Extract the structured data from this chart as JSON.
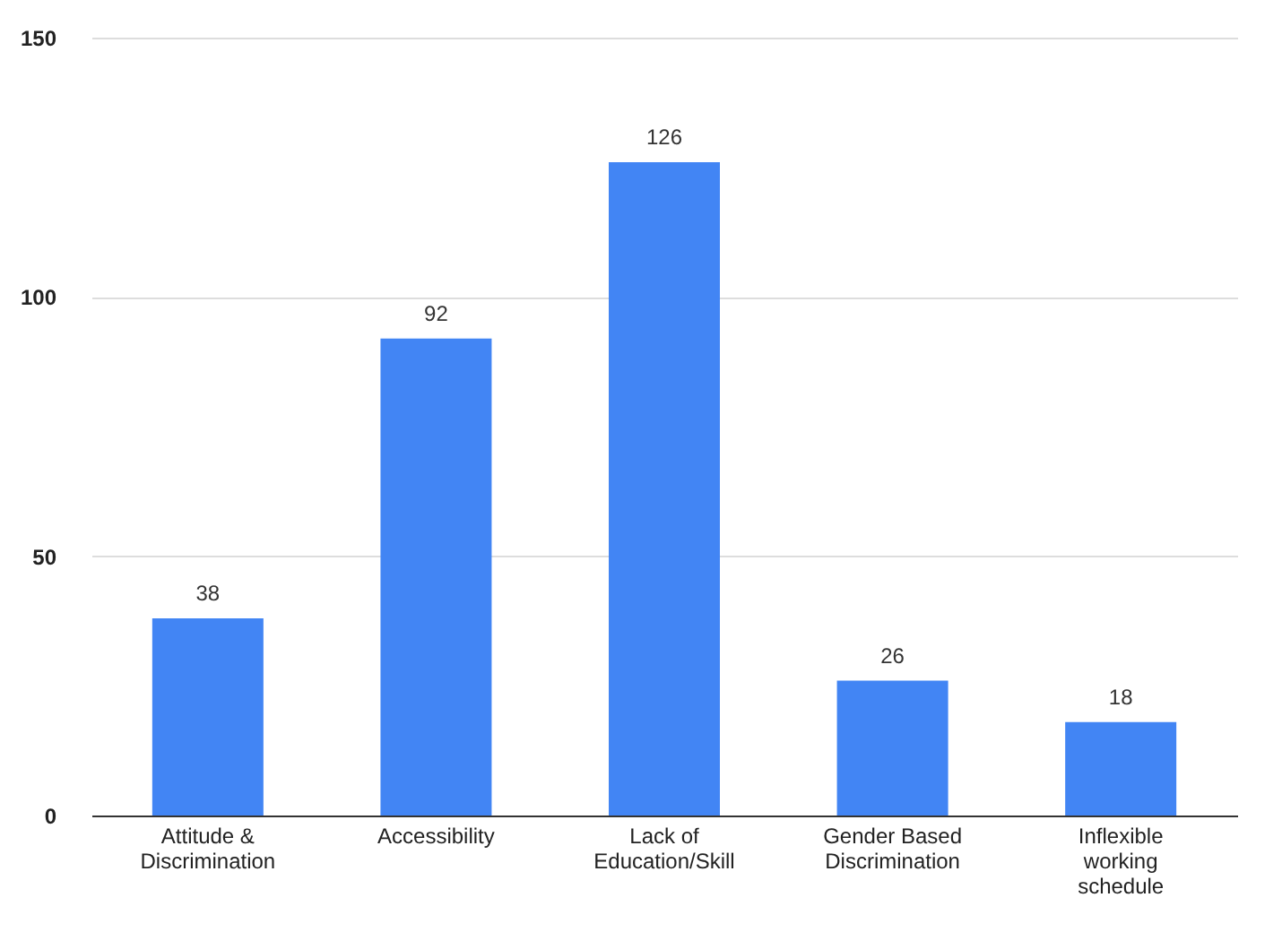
{
  "chart_data": {
    "type": "bar",
    "categories": [
      "Attitude &\nDiscrimination",
      "Accessibility",
      "Lack of\nEducation/Skill",
      "Gender Based\nDiscrimination",
      "Inflexible\nworking\nschedule"
    ],
    "values": [
      38,
      92,
      126,
      26,
      18
    ],
    "color": "#4285f4",
    "ylim": [
      0,
      150
    ],
    "yticks": [
      0,
      50,
      100,
      150
    ],
    "grid": "y",
    "data_labels": true
  }
}
